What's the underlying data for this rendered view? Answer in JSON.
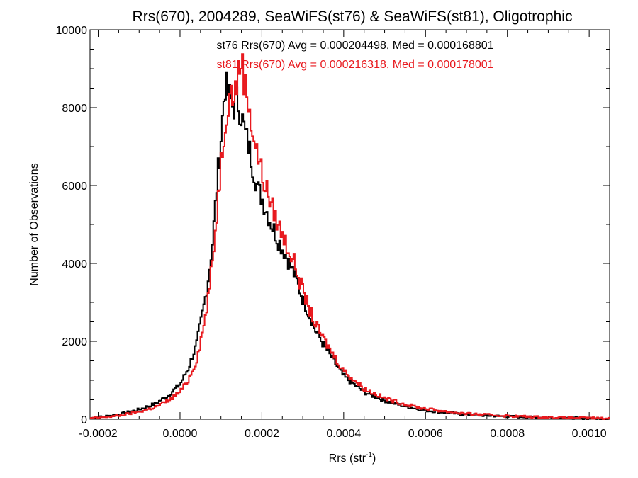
{
  "chart_data": {
    "type": "line",
    "title": "Rrs(670), 2004289, SeaWiFS(st76) & SeaWiFS(st81), Oligotrophic",
    "xlabel_base": "Rrs (str",
    "xlabel_sup": "-1",
    "xlabel_tail": ")",
    "ylabel": "Number of Observations",
    "xlim": [
      -0.00022,
      0.00105
    ],
    "ylim": [
      0,
      10000
    ],
    "xticks": [
      -0.0002,
      0.0,
      0.0002,
      0.0004,
      0.0006,
      0.0008,
      0.001
    ],
    "xtick_labels": [
      "-0.0002",
      "0.0000",
      "0.0002",
      "0.0004",
      "0.0006",
      "0.0008",
      "0.0010"
    ],
    "yticks": [
      0,
      2000,
      4000,
      6000,
      8000,
      10000
    ],
    "ytick_labels": [
      "0",
      "2000",
      "4000",
      "6000",
      "8000",
      "10000"
    ],
    "grid": false,
    "annotations": [
      {
        "text": "st76 Rrs(670) Avg = 0.000204498, Med = 0.000168801",
        "color": "#000000"
      },
      {
        "text": "st81 Rrs(670) Avg = 0.000216318, Med = 0.000178001",
        "color": "#e8191e"
      }
    ],
    "series": [
      {
        "color": "#000000",
        "x": [
          -0.00022,
          -0.0002,
          -0.00015,
          -0.0001,
          -6e-05,
          -3e-05,
          0.0,
          2e-05,
          4e-05,
          6e-05,
          7e-05,
          8e-05,
          9e-05,
          0.0001,
          0.00011,
          0.00012,
          0.00013,
          0.00014,
          0.00015,
          0.00016,
          0.00017,
          0.00018,
          0.00019,
          0.0002,
          0.00022,
          0.00024,
          0.00026,
          0.00028,
          0.0003,
          0.00033,
          0.00036,
          0.0004,
          0.00045,
          0.0005,
          0.00055,
          0.0006,
          0.00065,
          0.0007,
          0.0008,
          0.0009,
          0.00105
        ],
        "values": [
          30,
          50,
          120,
          250,
          400,
          600,
          900,
          1300,
          1900,
          3000,
          3700,
          4600,
          6000,
          7200,
          8600,
          8300,
          8000,
          8200,
          7800,
          7300,
          6900,
          6400,
          5900,
          5700,
          5100,
          4600,
          4200,
          3700,
          3100,
          2300,
          1750,
          1100,
          700,
          480,
          330,
          230,
          170,
          120,
          70,
          40,
          15
        ]
      },
      {
        "color": "#e8191e",
        "x": [
          -0.00022,
          -0.0002,
          -0.00015,
          -0.0001,
          -6e-05,
          -3e-05,
          0.0,
          2e-05,
          4e-05,
          6e-05,
          7e-05,
          8e-05,
          9e-05,
          0.0001,
          0.00011,
          0.00012,
          0.00013,
          0.00014,
          0.00015,
          0.00016,
          0.00017,
          0.00018,
          0.00019,
          0.0002,
          0.00022,
          0.00024,
          0.00026,
          0.00028,
          0.0003,
          0.00033,
          0.00036,
          0.0004,
          0.00045,
          0.0005,
          0.00055,
          0.0006,
          0.00065,
          0.0007,
          0.0008,
          0.0009,
          0.00105
        ],
        "values": [
          20,
          40,
          90,
          190,
          310,
          470,
          700,
          1000,
          1500,
          2500,
          3200,
          4100,
          5300,
          6600,
          7600,
          8400,
          8300,
          8700,
          9300,
          8500,
          8000,
          7200,
          6800,
          6300,
          5600,
          5000,
          4500,
          4000,
          3300,
          2450,
          1900,
          1250,
          780,
          540,
          380,
          270,
          200,
          140,
          85,
          50,
          20
        ]
      }
    ]
  }
}
